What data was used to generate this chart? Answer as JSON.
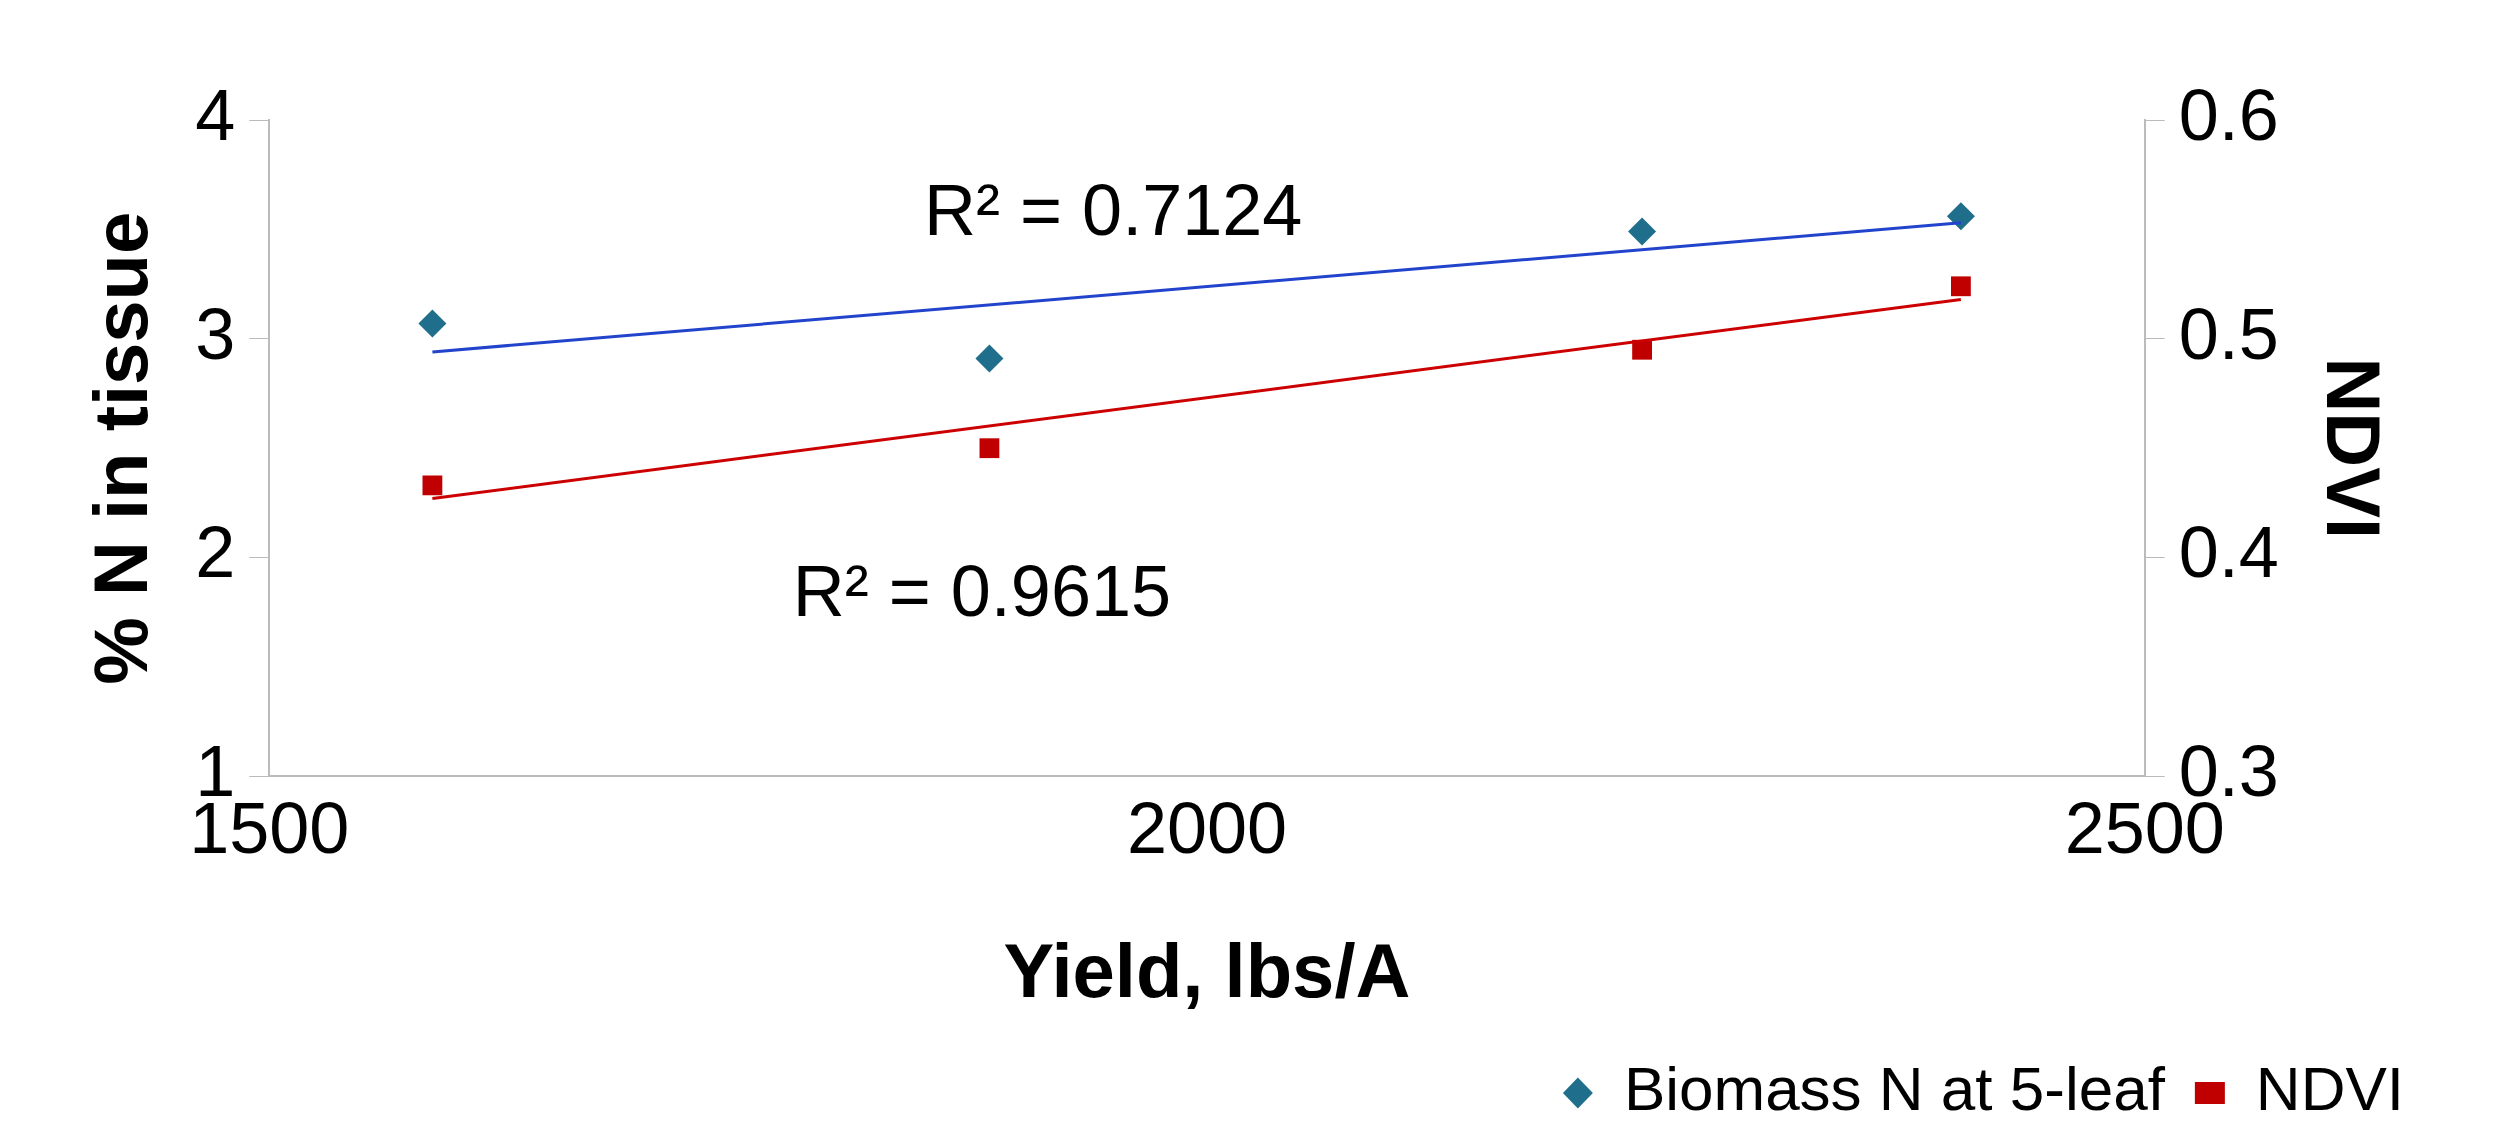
{
  "chart_data": {
    "type": "scatter",
    "xlabel": "Yield, lbs/A",
    "ylabel": "% N in tissue",
    "y2label": "NDVI",
    "xlim": [
      1500,
      2500
    ],
    "xticks": [
      1500,
      2000,
      2500
    ],
    "ylim": [
      1,
      4
    ],
    "yticks": [
      1,
      2,
      3,
      4
    ],
    "y2lim": [
      0.3,
      0.6
    ],
    "y2ticks": [
      0.3,
      0.4,
      0.5,
      0.6
    ],
    "grid": false,
    "legend": "bottom right",
    "series": [
      {
        "name": "Biomass N at 5-leaf",
        "type": "scatter",
        "marker": "diamond",
        "color": "#1f6e8c",
        "x": [
          1587,
          1884,
          2232,
          2402
        ],
        "values": [
          3.07,
          2.91,
          3.49,
          3.56
        ]
      },
      {
        "name": "NDVI",
        "type": "scatter",
        "marker": "square",
        "color": "#c00000",
        "axis": "y2",
        "x": [
          1587,
          1884,
          2232,
          2402
        ],
        "values": [
          0.433,
          0.45,
          0.495,
          0.524
        ]
      },
      {
        "type": "line",
        "marker": "none",
        "color": "#2244cc",
        "x": [
          1587,
          2402
        ],
        "values": [
          2.94,
          3.53
        ]
      },
      {
        "type": "line",
        "marker": "none",
        "color": "#cc0000",
        "axis": "y2",
        "x": [
          1587,
          2402
        ],
        "values": [
          0.427,
          0.518
        ]
      }
    ],
    "annotations": [
      "R² = 0.7124",
      "R² = 0.9615"
    ]
  }
}
